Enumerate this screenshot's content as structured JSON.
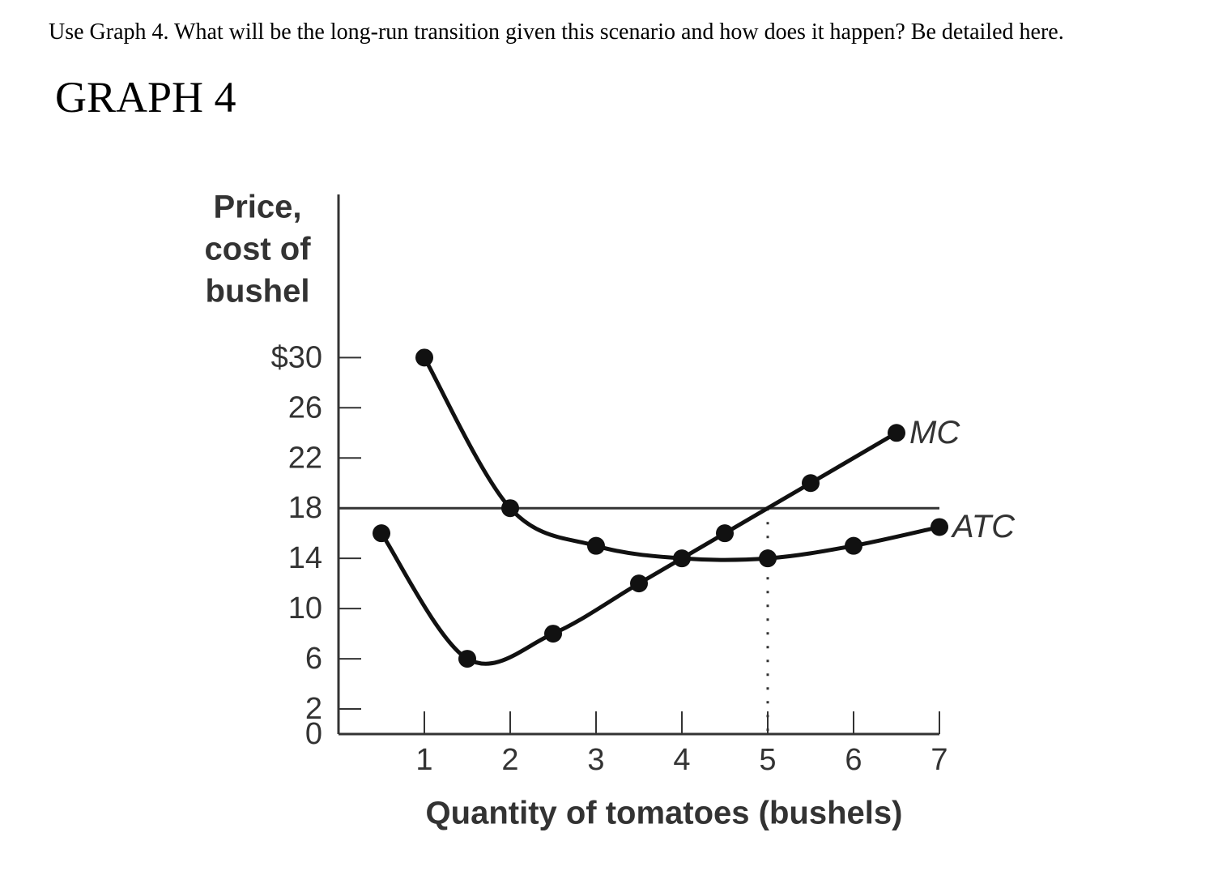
{
  "question": "Use Graph 4. What will be the long-run transition given this scenario and how does it happen? Be detailed here.",
  "heading": "GRAPH 4",
  "chart_data": {
    "type": "line",
    "y_label": [
      "Price,",
      "cost of",
      "bushel"
    ],
    "x_label": "Quantity of tomatoes (bushels)",
    "xlim": [
      0,
      7
    ],
    "ylim": [
      0,
      43
    ],
    "xticks": [
      1,
      2,
      3,
      4,
      5,
      6,
      7
    ],
    "yticks": [
      0,
      2,
      6,
      10,
      14,
      18,
      22,
      26,
      {
        "value": 30,
        "label": "$30"
      }
    ],
    "price": 18,
    "dotted_x": 5,
    "series": [
      {
        "name": "MC",
        "color": "#111111",
        "x": [
          0.5,
          1.5,
          2.5,
          3.5,
          4.5,
          5.5,
          6.5
        ],
        "values": [
          16,
          6,
          8,
          12,
          16,
          20,
          24
        ]
      },
      {
        "name": "ATC",
        "color": "#111111",
        "x": [
          1,
          2,
          3,
          4,
          5,
          6,
          7
        ],
        "values": [
          30,
          18,
          15,
          14,
          14,
          15,
          16.5
        ]
      }
    ]
  }
}
